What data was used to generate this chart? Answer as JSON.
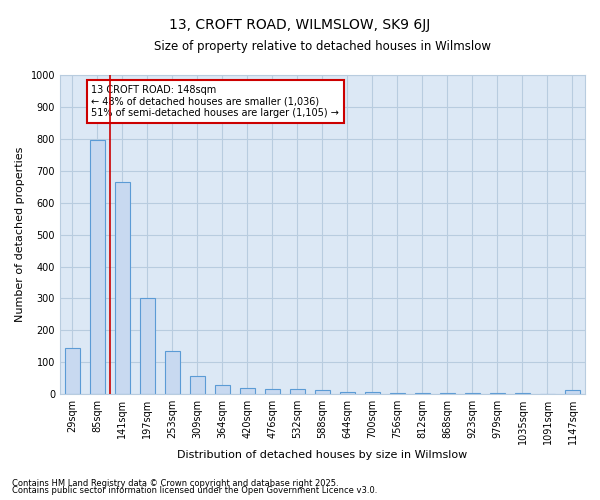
{
  "title": "13, CROFT ROAD, WILMSLOW, SK9 6JJ",
  "subtitle": "Size of property relative to detached houses in Wilmslow",
  "xlabel": "Distribution of detached houses by size in Wilmslow",
  "ylabel": "Number of detached properties",
  "bar_labels": [
    "29sqm",
    "85sqm",
    "141sqm",
    "197sqm",
    "253sqm",
    "309sqm",
    "364sqm",
    "420sqm",
    "476sqm",
    "532sqm",
    "588sqm",
    "644sqm",
    "700sqm",
    "756sqm",
    "812sqm",
    "868sqm",
    "923sqm",
    "979sqm",
    "1035sqm",
    "1091sqm",
    "1147sqm"
  ],
  "bar_values": [
    145,
    795,
    665,
    300,
    135,
    57,
    30,
    20,
    17,
    15,
    12,
    8,
    6,
    5,
    5,
    4,
    3,
    3,
    3,
    2,
    12
  ],
  "bar_color": "#c8d9f0",
  "bar_edge_color": "#5b9bd5",
  "ylim": [
    0,
    1000
  ],
  "yticks": [
    0,
    100,
    200,
    300,
    400,
    500,
    600,
    700,
    800,
    900,
    1000
  ],
  "property_line_color": "#cc0000",
  "property_line_index": 2,
  "annotation_text": "13 CROFT ROAD: 148sqm\n← 48% of detached houses are smaller (1,036)\n51% of semi-detached houses are larger (1,105) →",
  "annotation_box_color": "#cc0000",
  "plot_bg_color": "#dce8f5",
  "fig_bg_color": "#ffffff",
  "grid_color": "#b8ccdf",
  "title_fontsize": 10,
  "subtitle_fontsize": 8.5,
  "axis_label_fontsize": 8,
  "tick_fontsize": 7,
  "annotation_fontsize": 7,
  "footer_fontsize": 6,
  "footer1": "Contains HM Land Registry data © Crown copyright and database right 2025.",
  "footer2": "Contains public sector information licensed under the Open Government Licence v3.0."
}
